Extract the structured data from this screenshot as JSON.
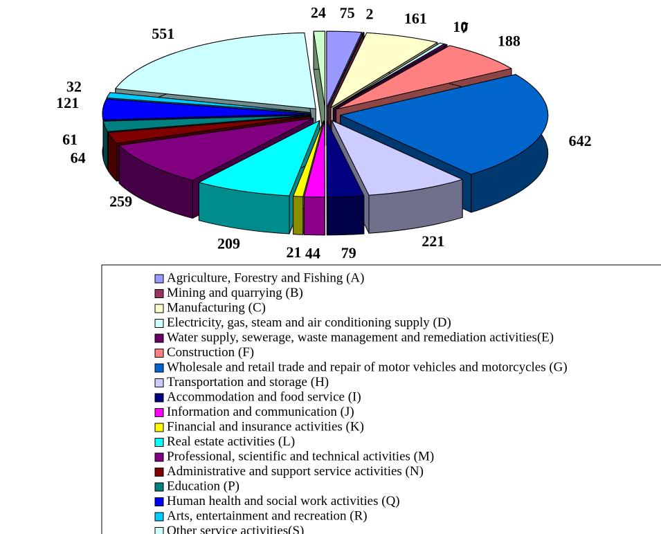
{
  "chart_data": {
    "type": "pie",
    "categories": [
      "Agriculture, Forestry and Fishing (A)",
      "Mining and quarrying (B)",
      "Manufacturing (C)",
      "Electricity, gas, steam and air conditioning supply (D)",
      "Water supply, sewerage, waste management and remediation activities(E)",
      "Construction (F)",
      "Wholesale and retail trade and repair of motor vehicles and motorcycles (G)",
      "Transportation and storage (H)",
      "Accommodation and food service (I)",
      "Information and communication (J)",
      "Financial and insurance activities (K)",
      "Real estate activities (L)",
      "Professional, scientific and technical activities (M)",
      "Administrative and support service activities (N)",
      "Education (P)",
      "Human health and social work activities (Q)",
      "Arts, entertainment and recreation (R)",
      "Other service activities(S)",
      null
    ],
    "values": [
      75,
      2,
      161,
      10,
      7,
      188,
      642,
      221,
      79,
      44,
      21,
      209,
      259,
      64,
      61,
      121,
      32,
      551,
      24
    ],
    "colors": [
      "#9999FF",
      "#993366",
      "#FFFFCC",
      "#CCFFFF",
      "#660066",
      "#FF8080",
      "#0066CC",
      "#CCCCFF",
      "#000080",
      "#FF00FF",
      "#FFFF00",
      "#00FFFF",
      "#800080",
      "#800000",
      "#008080",
      "#0000FF",
      "#00CCFF",
      "#CCFFFF",
      "#CCFFCC"
    ],
    "legend": "bottom"
  }
}
